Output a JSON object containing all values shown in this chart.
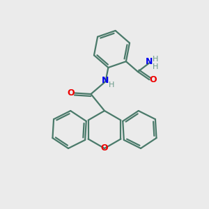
{
  "bg_color": "#ebebeb",
  "bond_color": "#4a7a6a",
  "N_color": "#0000ee",
  "O_color": "#ee0000",
  "H_color": "#6a9a8a",
  "line_width": 1.6,
  "dpi": 100,
  "figsize": [
    3.0,
    3.0
  ],
  "xlim": [
    0,
    10
  ],
  "ylim": [
    0,
    10
  ]
}
